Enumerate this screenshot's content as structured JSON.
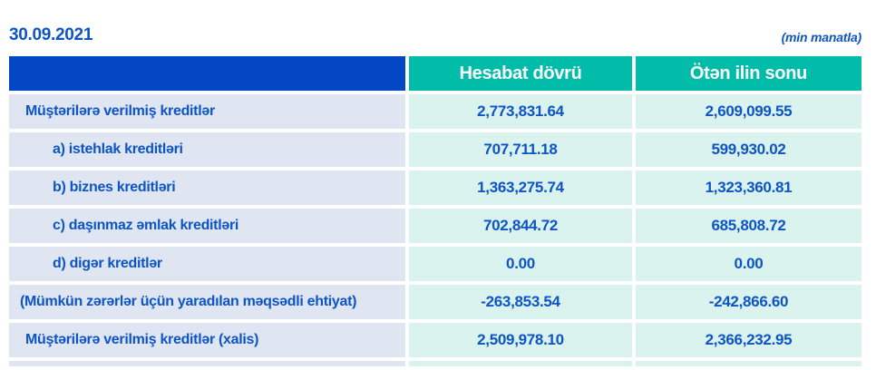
{
  "page": {
    "date": "30.09.2021",
    "unit_note": "(min manatla)"
  },
  "table": {
    "columns": [
      "Hesabat dövrü",
      "Ötən ilin sonu"
    ],
    "rows": [
      {
        "label": "Müştərilərə verilmiş kreditlər",
        "indent": false,
        "current": "2,773,831.64",
        "previous": "2,609,099.55"
      },
      {
        "label": "a) istehlak kreditləri",
        "indent": true,
        "current": "707,711.18",
        "previous": "599,930.02"
      },
      {
        "label": "b) biznes kreditləri",
        "indent": true,
        "current": "1,363,275.74",
        "previous": "1,323,360.81"
      },
      {
        "label": "c) daşınmaz əmlak kreditləri",
        "indent": true,
        "current": "702,844.72",
        "previous": "685,808.72"
      },
      {
        "label": "d) digər kreditlər",
        "indent": true,
        "current": "0.00",
        "previous": "0.00"
      },
      {
        "label": "(Mümkün zərərlər üçün yaradılan məqsədli ehtiyat)",
        "indent": false,
        "current": "-263,853.54",
        "previous": "-242,866.60"
      },
      {
        "label": "Müştərilərə verilmiş kreditlər (xalis)",
        "indent": false,
        "current": "2,509,978.10",
        "previous": "2,366,232.95"
      }
    ]
  },
  "colors": {
    "header_blue": "#0347c4",
    "teal": "#00bca9",
    "label_bg": "#dfe6f2",
    "value_bg": "#dbf3ef",
    "text_blue": "#0d54c6"
  }
}
